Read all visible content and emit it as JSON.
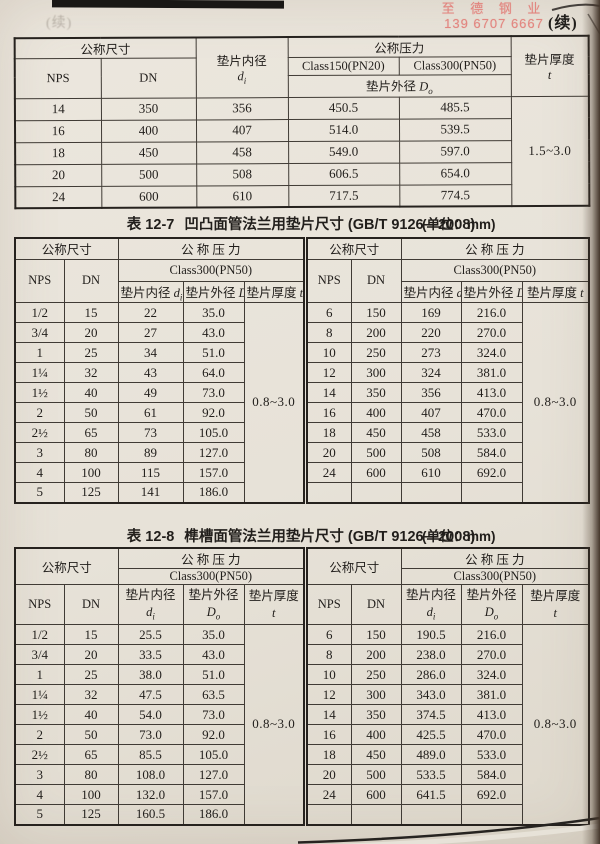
{
  "page": {
    "continued": "(续)",
    "ghost_continued": "(续)",
    "watermark": {
      "company": "至 德 钢 业",
      "phone": "139 6707 6667",
      "color": "#e2706b"
    }
  },
  "labels": {
    "nominal_size": "公称尺寸",
    "nps": "NPS",
    "dn": "DN",
    "nominal_pressure": "公称压力",
    "nominal_pressure_spaced": "公 称 压 力",
    "class150": "Class150(PN20)",
    "class300": "Class300(PN50)",
    "gasket_inner": "垫片内径",
    "inner_base": "d",
    "inner_sub": "i",
    "gasket_outer": "垫片外径",
    "outer_base": "D",
    "outer_sub": "o",
    "thickness": "垫片厚度",
    "thickness_sym": "t"
  },
  "table_top": {
    "thickness_value": "1.5~3.0",
    "rows": [
      [
        "14",
        "350",
        "356",
        "450.5",
        "485.5"
      ],
      [
        "16",
        "400",
        "407",
        "514.0",
        "539.5"
      ],
      [
        "18",
        "450",
        "458",
        "549.0",
        "597.0"
      ],
      [
        "20",
        "500",
        "508",
        "606.5",
        "654.0"
      ],
      [
        "24",
        "600",
        "610",
        "717.5",
        "774.5"
      ]
    ]
  },
  "table_12_7": {
    "caption_label": "表 12-7",
    "caption_title": "凹凸面管法兰用垫片尺寸 (GB/T 9126—2008)",
    "caption_unit": "(单位：mm)",
    "left": {
      "thickness_value": "0.8~3.0",
      "rows": [
        [
          "1/2",
          "15",
          "22",
          "35.0"
        ],
        [
          "3/4",
          "20",
          "27",
          "43.0"
        ],
        [
          "1",
          "25",
          "34",
          "51.0"
        ],
        [
          "1¼",
          "32",
          "43",
          "64.0"
        ],
        [
          "1½",
          "40",
          "49",
          "73.0"
        ],
        [
          "2",
          "50",
          "61",
          "92.0"
        ],
        [
          "2½",
          "65",
          "73",
          "105.0"
        ],
        [
          "3",
          "80",
          "89",
          "127.0"
        ],
        [
          "4",
          "100",
          "115",
          "157.0"
        ],
        [
          "5",
          "125",
          "141",
          "186.0"
        ]
      ]
    },
    "right": {
      "thickness_value": "0.8~3.0",
      "rows": [
        [
          "6",
          "150",
          "169",
          "216.0"
        ],
        [
          "8",
          "200",
          "220",
          "270.0"
        ],
        [
          "10",
          "250",
          "273",
          "324.0"
        ],
        [
          "12",
          "300",
          "324",
          "381.0"
        ],
        [
          "14",
          "350",
          "356",
          "413.0"
        ],
        [
          "16",
          "400",
          "407",
          "470.0"
        ],
        [
          "18",
          "450",
          "458",
          "533.0"
        ],
        [
          "20",
          "500",
          "508",
          "584.0"
        ],
        [
          "24",
          "600",
          "610",
          "692.0"
        ],
        [
          "",
          "",
          "",
          ""
        ]
      ]
    }
  },
  "table_12_8": {
    "caption_label": "表 12-8",
    "caption_title": "榫槽面管法兰用垫片尺寸 (GB/T 9126—2008)",
    "caption_unit": "(单位：mm)",
    "left": {
      "thickness_value": "0.8~3.0",
      "rows": [
        [
          "1/2",
          "15",
          "25.5",
          "35.0"
        ],
        [
          "3/4",
          "20",
          "33.5",
          "43.0"
        ],
        [
          "1",
          "25",
          "38.0",
          "51.0"
        ],
        [
          "1¼",
          "32",
          "47.5",
          "63.5"
        ],
        [
          "1½",
          "40",
          "54.0",
          "73.0"
        ],
        [
          "2",
          "50",
          "73.0",
          "92.0"
        ],
        [
          "2½",
          "65",
          "85.5",
          "105.0"
        ],
        [
          "3",
          "80",
          "108.0",
          "127.0"
        ],
        [
          "4",
          "100",
          "132.0",
          "157.0"
        ],
        [
          "5",
          "125",
          "160.5",
          "186.0"
        ]
      ]
    },
    "right": {
      "thickness_value": "0.8~3.0",
      "rows": [
        [
          "6",
          "150",
          "190.5",
          "216.0"
        ],
        [
          "8",
          "200",
          "238.0",
          "270.0"
        ],
        [
          "10",
          "250",
          "286.0",
          "324.0"
        ],
        [
          "12",
          "300",
          "343.0",
          "381.0"
        ],
        [
          "14",
          "350",
          "374.5",
          "413.0"
        ],
        [
          "16",
          "400",
          "425.5",
          "470.0"
        ],
        [
          "18",
          "450",
          "489.0",
          "533.0"
        ],
        [
          "20",
          "500",
          "533.5",
          "584.0"
        ],
        [
          "24",
          "600",
          "641.5",
          "692.0"
        ],
        [
          "",
          "",
          "",
          ""
        ]
      ]
    }
  }
}
